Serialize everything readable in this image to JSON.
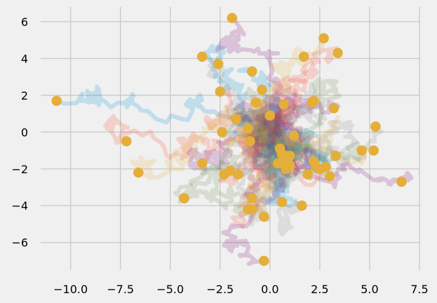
{
  "chart_data": {
    "type": "scatter",
    "title": "",
    "xlabel": "",
    "ylabel": "",
    "xlim": [
      -11.5,
      7.5
    ],
    "ylim": [
      -7.5,
      6.8
    ],
    "grid": true,
    "x_ticks": [
      -10.0,
      -7.5,
      -5.0,
      -2.5,
      0.0,
      2.5,
      5.0,
      7.5
    ],
    "x_tick_labels": [
      "−10.0",
      "−7.5",
      "−5.0",
      "−2.5",
      "0.0",
      "2.5",
      "5.0",
      "7.5"
    ],
    "y_ticks": [
      -6,
      -4,
      -2,
      0,
      2,
      4,
      6
    ],
    "y_tick_labels": [
      "−6",
      "−4",
      "−2",
      "0",
      "2",
      "4",
      "6"
    ],
    "colors": {
      "background": "#f0f0f0",
      "grid": "#cbcbcb",
      "endpoints": "#e5ae38",
      "walks": [
        "#008fd5",
        "#fc4f30",
        "#e5ae38",
        "#6d904f",
        "#8b8b8b",
        "#810f7c"
      ]
    },
    "series": [
      {
        "type": "scatter",
        "x": [
          -10.7,
          -7.2,
          -6.6,
          -4.3,
          -3.4,
          -3.4,
          -2.6,
          -2.5,
          -2.4,
          -2.3,
          -2.0,
          -1.9,
          -1.7,
          -1.6,
          -1.1,
          -1.1,
          -1.0,
          -0.9,
          -0.9,
          -0.9,
          -0.7,
          -0.4,
          -0.3,
          -0.3,
          0.0,
          0.4,
          0.5,
          0.6,
          0.6,
          0.7,
          0.8,
          0.8,
          0.9,
          1.0,
          1.0,
          1.2,
          1.6,
          1.7,
          1.9,
          2.1,
          2.2,
          2.2,
          2.3,
          2.5,
          2.7,
          2.8,
          3.0,
          3.2,
          3.3,
          3.4,
          4.6,
          5.2,
          5.3,
          6.6
        ],
        "y": [
          1.7,
          -0.5,
          -2.2,
          -3.6,
          4.1,
          -1.7,
          3.7,
          2.2,
          0.0,
          -2.3,
          -2.1,
          6.2,
          0.7,
          -2.3,
          0.2,
          -4.2,
          -0.5,
          -3.6,
          3.3,
          -4.2,
          1.6,
          2.3,
          -4.6,
          -7.0,
          0.9,
          -1.7,
          -0.9,
          -1.2,
          -3.8,
          1.5,
          -1.6,
          -2.0,
          -1.3,
          -1.8,
          -1.3,
          -0.2,
          -4.0,
          4.1,
          -2.3,
          1.6,
          1.7,
          -1.6,
          -1.9,
          -2.0,
          5.1,
          -1.9,
          -2.4,
          1.3,
          -1.3,
          4.3,
          -1.0,
          -1.0,
          0.3,
          -2.7
        ]
      }
    ]
  }
}
